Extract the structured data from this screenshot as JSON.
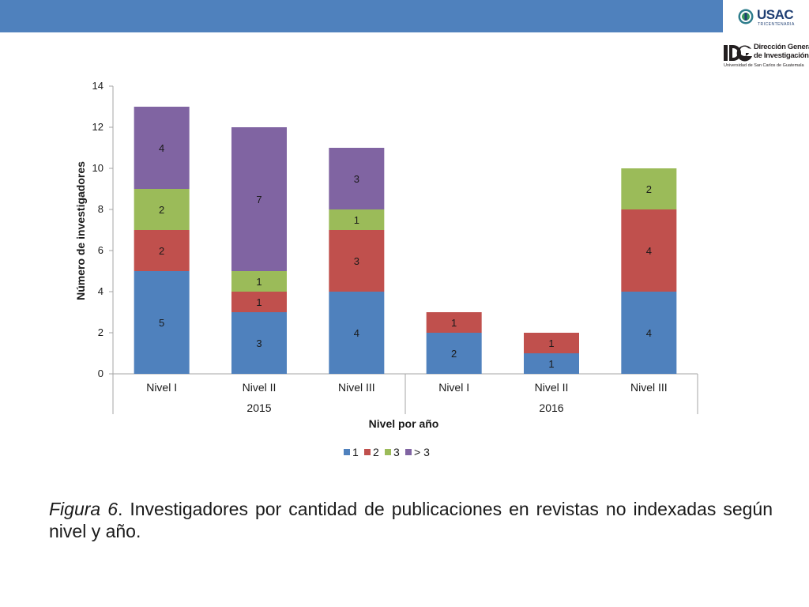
{
  "logos": {
    "usac": {
      "name": "USAC",
      "subtitle": "TRICENTENARIA"
    },
    "dgi": {
      "line1": "Dirección General",
      "line2": "de Investigación",
      "line3": "Universidad de San Carlos de Guatemala"
    }
  },
  "caption": {
    "figure_label": "Figura 6",
    "text": ". Investigadores por cantidad de publicaciones en revistas no indexadas según nivel y año."
  },
  "colors": {
    "band": "#4f81bd",
    "series": [
      "#4f81bd",
      "#c0504d",
      "#9bbb59",
      "#8064a2"
    ]
  },
  "chart_data": {
    "type": "bar",
    "stacked": true,
    "categories": [
      "Nivel I",
      "Nivel II",
      "Nivel III",
      "Nivel I",
      "Nivel II",
      "Nivel III"
    ],
    "groups": [
      {
        "label": "2015",
        "categories": [
          0,
          1,
          2
        ]
      },
      {
        "label": "2016",
        "categories": [
          3,
          4,
          5
        ]
      }
    ],
    "series": [
      {
        "name": "1",
        "color": "#4f81bd",
        "values": [
          5,
          3,
          4,
          2,
          1,
          4
        ]
      },
      {
        "name": "2",
        "color": "#c0504d",
        "values": [
          2,
          1,
          3,
          1,
          1,
          4
        ]
      },
      {
        "name": "3",
        "color": "#9bbb59",
        "values": [
          2,
          1,
          1,
          0,
          0,
          2
        ]
      },
      {
        "name": "> 3",
        "color": "#8064a2",
        "values": [
          4,
          7,
          3,
          0,
          0,
          0
        ]
      }
    ],
    "xlabel": "Nivel por año",
    "ylabel": "Número de investigadores",
    "ylim": [
      0,
      14
    ],
    "yticks": [
      "0",
      "2",
      "4",
      "6",
      "8",
      "10",
      "12",
      "14"
    ],
    "grid": false,
    "legend": "bottom",
    "data_labels": true
  }
}
